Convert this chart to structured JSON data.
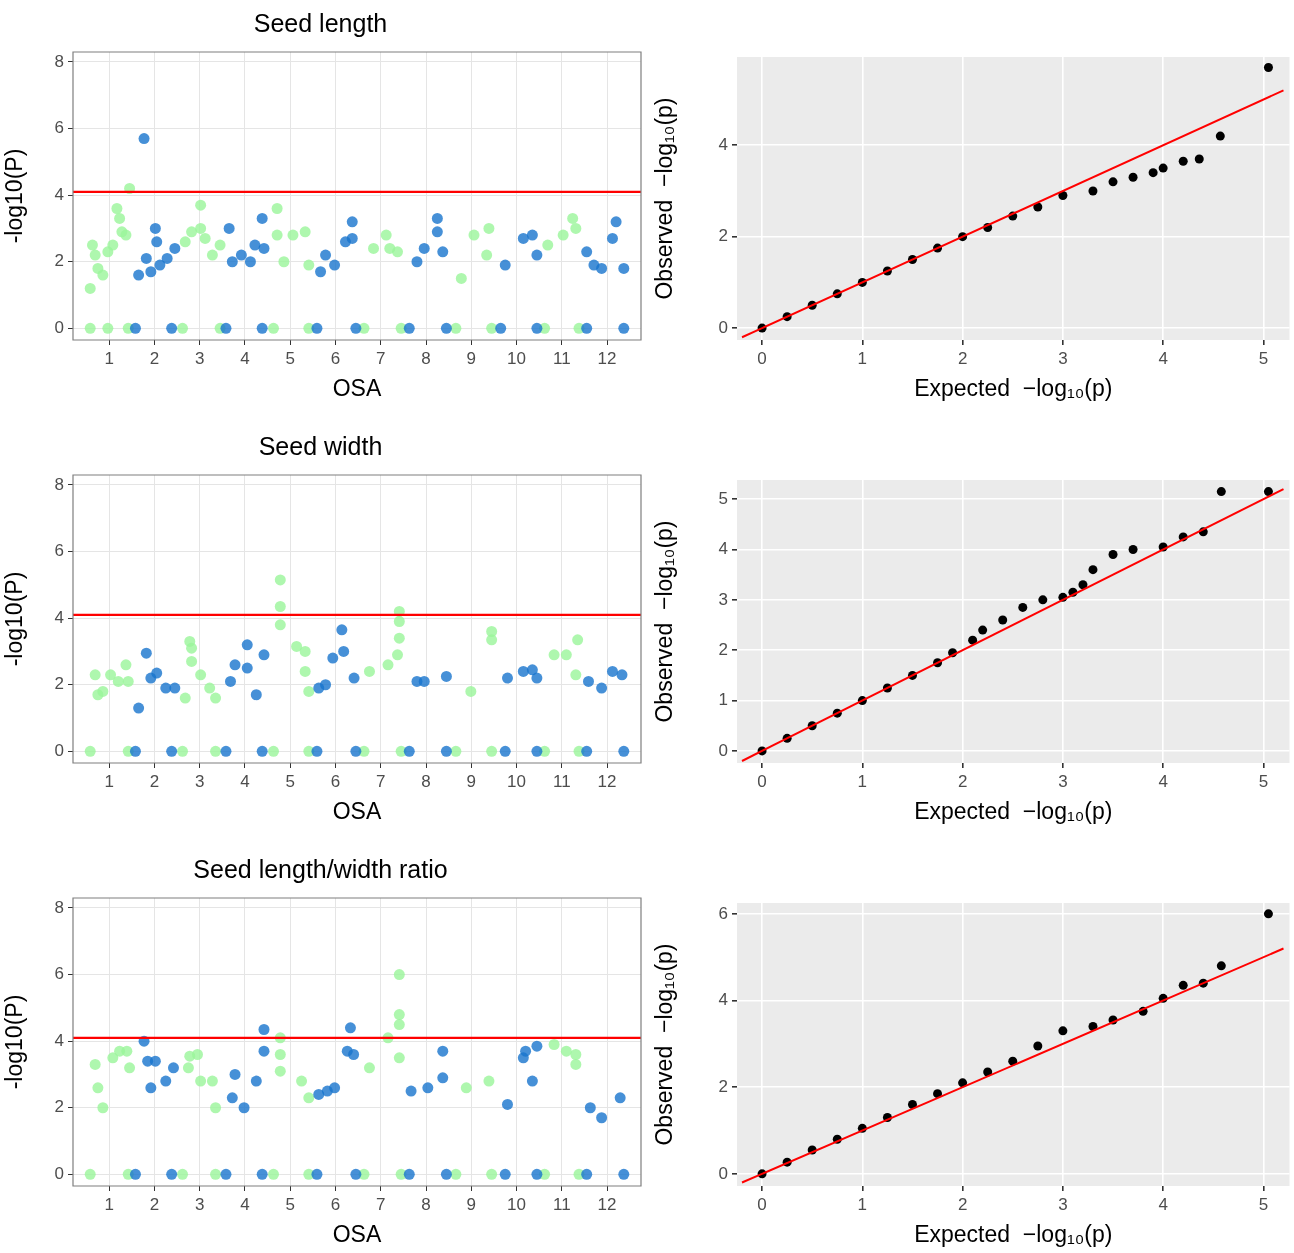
{
  "chart_data": [
    {
      "type": "scatter",
      "title": "Seed length",
      "xlabel": "OSA",
      "ylabel": "-log10(P)",
      "xlim": [
        0.2,
        12.75
      ],
      "xticks": [
        1,
        2,
        3,
        4,
        5,
        6,
        7,
        8,
        9,
        10,
        11,
        12
      ],
      "ylim": [
        -0.35,
        8.3
      ],
      "yticks": [
        0,
        2,
        4,
        6,
        8
      ],
      "grid": true,
      "legend": false,
      "marker": "circle",
      "ref_lines": [
        {
          "axis": "y",
          "value": 4.1,
          "color": "#ff0000"
        }
      ],
      "series": [
        {
          "color": "#9af59a",
          "x": [
            0.58,
            0.58,
            0.63,
            0.69,
            0.75,
            0.86,
            0.97,
            0.97,
            1.08,
            1.17,
            1.23,
            1.28,
            1.37,
            1.42,
            1.45,
            2.62,
            2.68,
            2.82,
            3.02,
            3.02,
            3.12,
            3.28,
            3.45,
            3.45,
            4.63,
            4.71,
            4.71,
            4.86,
            5.06,
            5.33,
            5.41,
            5.41,
            6.63,
            6.84,
            7.12,
            7.2,
            7.37,
            7.45,
            8.66,
            8.78,
            9.06,
            9.39,
            9.34,
            9.45,
            10.62,
            10.69,
            11.03,
            11.24,
            11.31,
            11.38
          ],
          "values": [
            0,
            1.2,
            2.5,
            2.2,
            1.8,
            1.6,
            0,
            2.3,
            2.5,
            3.6,
            3.3,
            2.9,
            2.8,
            0,
            4.2,
            0,
            2.6,
            2.9,
            3.7,
            3,
            2.7,
            2.2,
            0,
            2.5,
            0,
            3.6,
            2.8,
            2,
            2.8,
            2.9,
            1.9,
            0,
            0,
            2.4,
            2.8,
            2.4,
            2.3,
            0,
            0,
            1.5,
            2.8,
            3,
            2.2,
            0,
            0,
            2.5,
            2.8,
            3.3,
            3,
            0
          ]
        },
        {
          "color": "#1874cd",
          "x": [
            1.58,
            1.65,
            1.77,
            1.82,
            1.92,
            2.02,
            2.05,
            2.12,
            2.28,
            2.38,
            2.45,
            3.58,
            3.65,
            3.72,
            3.92,
            4.12,
            4.22,
            4.38,
            4.42,
            4.38,
            5.59,
            5.67,
            5.78,
            5.98,
            6.22,
            6.37,
            6.37,
            6.45,
            7.63,
            7.8,
            7.96,
            8.25,
            8.25,
            8.37,
            8.45,
            9.65,
            9.75,
            10.15,
            10.35,
            10.45,
            10.45,
            11.55,
            11.55,
            11.71,
            11.88,
            12.12,
            12.2,
            12.37,
            12.37
          ],
          "values": [
            0,
            1.6,
            5.7,
            2.1,
            1.7,
            3,
            2.6,
            1.9,
            2.1,
            0,
            2.4,
            0,
            3,
            2,
            2.2,
            2,
            2.5,
            3.3,
            2.4,
            0,
            0,
            1.7,
            2.2,
            1.9,
            2.6,
            3.2,
            2.7,
            0,
            0,
            2,
            2.4,
            3.3,
            2.9,
            2.3,
            0,
            0,
            1.9,
            2.7,
            2.8,
            2.2,
            0,
            0,
            2.3,
            1.9,
            1.8,
            2.7,
            3.2,
            1.8,
            0
          ]
        }
      ]
    },
    {
      "type": "scatter",
      "xlabel": "Expected  −log₁₀(p)",
      "ylabel": "Observed  −log₁₀(p)",
      "xlim": [
        -0.25,
        5.26
      ],
      "xticks": [
        0,
        1,
        2,
        3,
        4,
        5
      ],
      "ylim": [
        -0.26,
        5.93
      ],
      "yticks": [
        0,
        2,
        4
      ],
      "grid": true,
      "legend": false,
      "series": [
        {
          "color": "#000000",
          "marker": "circle",
          "x": [
            0,
            0.25,
            0.5,
            0.75,
            1,
            1.25,
            1.5,
            1.75,
            2,
            2.25,
            2.5,
            2.75,
            3,
            3.3,
            3.5,
            3.7,
            3.9,
            4,
            4.2,
            4.36,
            4.57,
            5.05
          ],
          "values": [
            0,
            0.25,
            0.5,
            0.75,
            1,
            1.25,
            1.5,
            1.75,
            2,
            2.2,
            2.45,
            2.65,
            2.9,
            3,
            3.2,
            3.3,
            3.4,
            3.5,
            3.65,
            3.7,
            4.2,
            5.7
          ]
        },
        {
          "type": "line",
          "color": "#ff0000",
          "x": [
            -0.2,
            5.2
          ],
          "values": [
            -0.2,
            5.2
          ]
        }
      ]
    },
    {
      "type": "scatter",
      "title": "Seed width",
      "xlabel": "OSA",
      "ylabel": "-log10(P)",
      "xlim": [
        0.2,
        12.75
      ],
      "xticks": [
        1,
        2,
        3,
        4,
        5,
        6,
        7,
        8,
        9,
        10,
        11,
        12
      ],
      "ylim": [
        -0.35,
        8.3
      ],
      "yticks": [
        0,
        2,
        4,
        6,
        8
      ],
      "grid": true,
      "legend": false,
      "marker": "circle",
      "ref_lines": [
        {
          "axis": "y",
          "value": 4.1,
          "color": "#ff0000"
        }
      ],
      "series": [
        {
          "color": "#9af59a",
          "x": [
            0.58,
            0.69,
            0.75,
            0.86,
            1.03,
            1.2,
            1.37,
            1.42,
            1.42,
            2.62,
            2.68,
            2.78,
            2.82,
            2.82,
            3.02,
            3.22,
            3.35,
            3.35,
            4.63,
            4.78,
            4.78,
            4.78,
            5.14,
            5.33,
            5.33,
            5.41,
            5.41,
            6.63,
            6.75,
            7.16,
            7.41,
            7.41,
            7.41,
            7.37,
            7.45,
            8.66,
            8.99,
            9.45,
            9.45,
            9.45,
            10.62,
            10.83,
            11.1,
            11.35,
            11.31,
            11.38
          ],
          "values": [
            0,
            2.3,
            1.7,
            1.8,
            2.3,
            2.1,
            2.6,
            2.1,
            0,
            0,
            1.6,
            3.3,
            3.1,
            2.7,
            2.3,
            1.9,
            1.6,
            0,
            0,
            5.15,
            4.35,
            3.8,
            3.15,
            3,
            2.4,
            1.8,
            0,
            0,
            2.4,
            2.6,
            4.2,
            3.9,
            3.4,
            2.9,
            0,
            0,
            1.8,
            3.6,
            3.35,
            0,
            0,
            2.9,
            2.9,
            3.35,
            2.3,
            0
          ]
        },
        {
          "color": "#1874cd",
          "x": [
            1.58,
            1.65,
            1.82,
            1.92,
            2.05,
            2.25,
            2.45,
            2.38,
            3.58,
            3.68,
            3.78,
            4.05,
            4.05,
            4.25,
            4.42,
            4.38,
            5.59,
            5.63,
            5.78,
            5.94,
            6.14,
            6.18,
            6.41,
            6.45,
            7.63,
            7.8,
            7.96,
            8.45,
            8.45,
            9.75,
            9.8,
            10.15,
            10.35,
            10.45,
            10.45,
            11.55,
            11.59,
            11.88,
            12.12,
            12.33,
            12.37
          ],
          "values": [
            0,
            1.3,
            2.95,
            2.2,
            2.35,
            1.9,
            1.9,
            0,
            0,
            2.1,
            2.6,
            3.2,
            2.5,
            1.7,
            2.9,
            0,
            0,
            1.9,
            2,
            2.8,
            3.65,
            3,
            2.2,
            0,
            0,
            2.1,
            2.1,
            2.25,
            0,
            0,
            2.2,
            2.4,
            2.45,
            2.2,
            0,
            0,
            2.1,
            1.9,
            2.4,
            2.3,
            0
          ]
        }
      ]
    },
    {
      "type": "scatter",
      "xlabel": "Expected  −log₁₀(p)",
      "ylabel": "Observed  −log₁₀(p)",
      "xlim": [
        -0.25,
        5.26
      ],
      "xticks": [
        0,
        1,
        2,
        3,
        4,
        5
      ],
      "ylim": [
        -0.24,
        5.38
      ],
      "yticks": [
        0,
        1,
        2,
        3,
        4,
        5
      ],
      "grid": true,
      "legend": false,
      "series": [
        {
          "color": "#000000",
          "marker": "circle",
          "x": [
            0,
            0.25,
            0.5,
            0.75,
            1,
            1.25,
            1.5,
            1.75,
            1.9,
            2.1,
            2.2,
            2.4,
            2.6,
            2.8,
            3,
            3.1,
            3.2,
            3.3,
            3.5,
            3.7,
            4,
            4.2,
            4.4,
            4.58,
            5.05
          ],
          "values": [
            0,
            0.25,
            0.5,
            0.75,
            1,
            1.25,
            1.5,
            1.75,
            1.95,
            2.2,
            2.4,
            2.6,
            2.85,
            3,
            3.05,
            3.15,
            3.3,
            3.6,
            3.9,
            4,
            4.05,
            4.25,
            4.35,
            5.15,
            5.15
          ]
        },
        {
          "type": "line",
          "color": "#ff0000",
          "x": [
            -0.2,
            5.2
          ],
          "values": [
            -0.2,
            5.2
          ]
        }
      ]
    },
    {
      "type": "scatter",
      "title": "Seed length/width ratio",
      "xlabel": "OSA",
      "ylabel": "-log10(P)",
      "xlim": [
        0.2,
        12.75
      ],
      "xticks": [
        1,
        2,
        3,
        4,
        5,
        6,
        7,
        8,
        9,
        10,
        11,
        12
      ],
      "ylim": [
        -0.35,
        8.3
      ],
      "yticks": [
        0,
        2,
        4,
        6,
        8
      ],
      "grid": true,
      "legend": false,
      "marker": "circle",
      "ref_lines": [
        {
          "axis": "y",
          "value": 4.1,
          "color": "#ff0000"
        }
      ],
      "series": [
        {
          "color": "#9af59a",
          "x": [
            0.58,
            0.69,
            0.75,
            0.86,
            1.08,
            1.23,
            1.39,
            1.45,
            1.42,
            2.62,
            2.75,
            2.78,
            2.95,
            3.02,
            3.28,
            3.35,
            3.35,
            4.63,
            4.78,
            4.78,
            4.78,
            5.25,
            5.41,
            5.41,
            6.63,
            6.75,
            7.16,
            7.41,
            7.41,
            7.41,
            7.41,
            7.45,
            8.66,
            8.89,
            9.39,
            9.45,
            10.62,
            10.83,
            11.1,
            11.31,
            11.31,
            11.38
          ],
          "values": [
            0,
            3.3,
            2.6,
            2,
            3.5,
            3.7,
            3.7,
            3.2,
            0,
            0,
            3.2,
            3.55,
            3.6,
            2.8,
            2.8,
            2,
            0,
            0,
            4.1,
            3.6,
            3.1,
            2.8,
            2.3,
            0,
            0,
            3.2,
            4.1,
            6,
            4.8,
            4.5,
            3.5,
            0,
            0,
            2.6,
            2.8,
            0,
            0,
            3.9,
            3.7,
            3.6,
            3.3,
            0
          ]
        },
        {
          "color": "#1874cd",
          "x": [
            1.58,
            1.77,
            1.85,
            1.92,
            2.02,
            2.25,
            2.42,
            2.38,
            3.58,
            3.72,
            3.78,
            3.98,
            4.25,
            4.42,
            4.42,
            4.38,
            5.59,
            5.63,
            5.82,
            5.98,
            6.33,
            6.26,
            6.4,
            6.45,
            7.63,
            7.67,
            8.04,
            8.37,
            8.37,
            8.45,
            9.75,
            9.8,
            10.15,
            10.2,
            10.45,
            10.35,
            10.45,
            11.55,
            11.63,
            11.88,
            12.29,
            12.37
          ],
          "values": [
            0,
            4,
            3.4,
            2.6,
            3.4,
            2.8,
            3.2,
            0,
            0,
            2.3,
            3,
            2,
            2.8,
            4.35,
            3.7,
            0,
            0,
            2.4,
            2.5,
            2.6,
            4.4,
            3.7,
            3.6,
            0,
            0,
            2.5,
            2.6,
            3.7,
            2.9,
            0,
            0,
            2.1,
            3.5,
            3.7,
            3.85,
            2.8,
            0,
            0,
            2,
            1.7,
            2.3,
            0
          ]
        }
      ]
    },
    {
      "type": "scatter",
      "xlabel": "Expected  −log₁₀(p)",
      "ylabel": "Observed  −log₁₀(p)",
      "xlim": [
        -0.25,
        5.26
      ],
      "xticks": [
        0,
        1,
        2,
        3,
        4,
        5
      ],
      "ylim": [
        -0.28,
        6.25
      ],
      "yticks": [
        0,
        2,
        4,
        6
      ],
      "grid": true,
      "legend": false,
      "series": [
        {
          "color": "#000000",
          "marker": "circle",
          "x": [
            0,
            0.25,
            0.5,
            0.75,
            1,
            1.25,
            1.5,
            1.75,
            2,
            2.25,
            2.5,
            2.75,
            3,
            3.3,
            3.5,
            3.8,
            4,
            4.2,
            4.4,
            4.58,
            5.05
          ],
          "values": [
            0,
            0.27,
            0.55,
            0.8,
            1.05,
            1.3,
            1.6,
            1.85,
            2.1,
            2.35,
            2.6,
            2.95,
            3.3,
            3.4,
            3.55,
            3.75,
            4.05,
            4.35,
            4.4,
            4.8,
            6
          ]
        },
        {
          "type": "line",
          "color": "#ff0000",
          "x": [
            -0.2,
            5.2
          ],
          "values": [
            -0.2,
            5.2
          ]
        }
      ]
    }
  ]
}
